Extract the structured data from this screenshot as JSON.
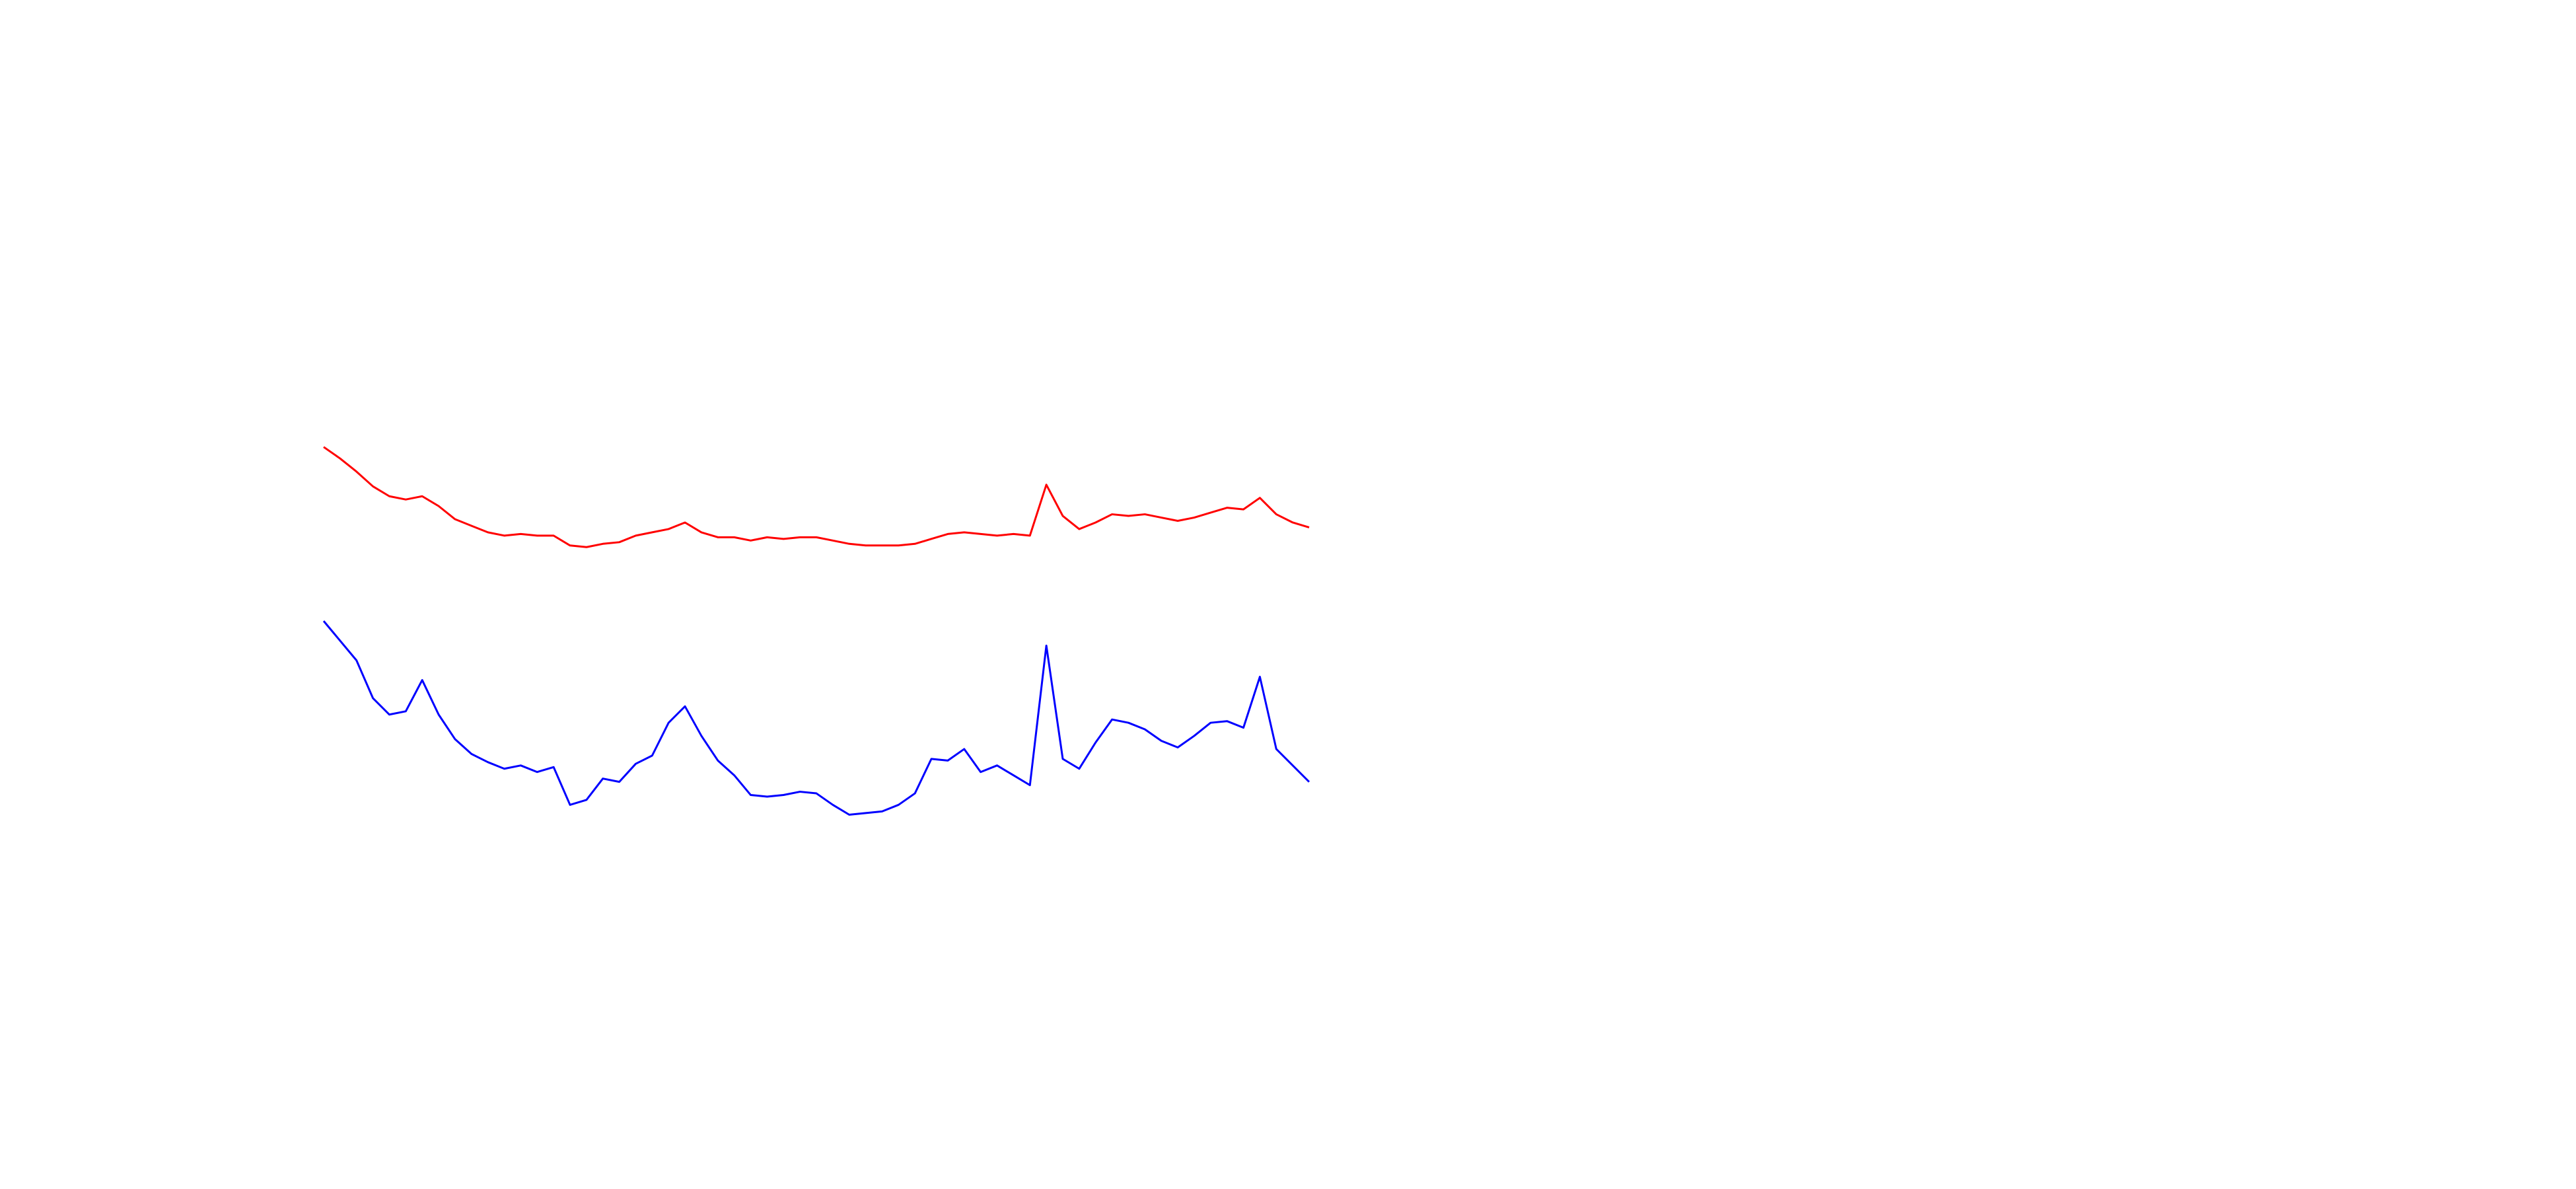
{
  "chart_data": {
    "type": "line",
    "x": [
      0,
      1,
      2,
      3,
      4,
      5,
      6,
      7,
      8,
      9,
      10,
      11,
      12,
      13,
      14,
      15,
      16,
      17,
      18,
      19,
      20,
      21,
      22,
      23,
      24,
      25,
      26,
      27,
      28,
      29,
      30,
      31,
      32,
      33,
      34,
      35,
      36,
      37,
      38,
      39,
      40,
      41,
      42,
      43,
      44,
      45,
      46,
      47,
      48,
      49,
      50,
      51,
      52,
      53,
      54,
      55,
      56,
      57,
      58,
      59,
      60
    ],
    "xlim": [
      0,
      60
    ],
    "ylim": [
      0,
      270
    ],
    "series": [
      {
        "color": "#ff0000",
        "values": [
          248,
          241,
          233,
          224,
          218,
          216,
          218,
          212,
          204,
          200,
          196,
          194,
          195,
          194,
          194,
          188,
          187,
          189,
          190,
          194,
          196,
          198,
          202,
          196,
          193,
          193,
          191,
          193,
          192,
          193,
          193,
          191,
          189,
          188,
          188,
          188,
          189,
          192,
          195,
          196,
          195,
          194,
          195,
          194,
          225,
          206,
          198,
          202,
          207,
          206,
          207,
          205,
          203,
          205,
          208,
          211,
          210,
          217,
          207,
          202,
          199
        ]
      },
      {
        "color": "#0000ff",
        "values": [
          142,
          130,
          118,
          95,
          85,
          87,
          106,
          85,
          70,
          61,
          56,
          52,
          54,
          50,
          53,
          30,
          33,
          46,
          44,
          55,
          60,
          80,
          90,
          72,
          57,
          48,
          36,
          35,
          36,
          38,
          37,
          30,
          24,
          25,
          26,
          30,
          37,
          58,
          57,
          64,
          50,
          54,
          48,
          42,
          127,
          58,
          52,
          68,
          82,
          80,
          76,
          69,
          65,
          72,
          80,
          81,
          77,
          108,
          64,
          54,
          44
        ]
      }
    ]
  }
}
